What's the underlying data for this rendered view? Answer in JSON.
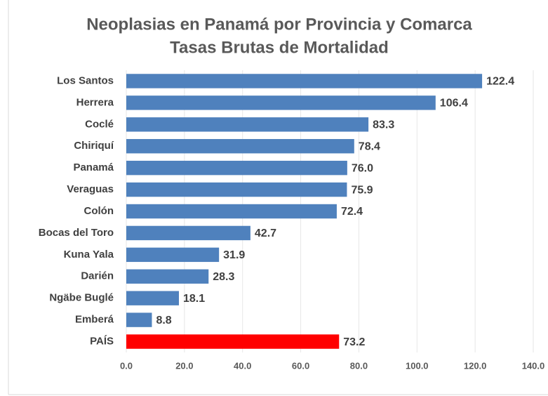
{
  "chart_data": {
    "type": "barh",
    "title": "Neoplasias en Panamá por Provincia y Comarca",
    "subtitle": "Tasas Brutas de Mortalidad",
    "categories": [
      "Los Santos",
      "Herrera",
      "Coclé",
      "Chiriquí",
      "Panamá",
      "Veraguas",
      "Colón",
      "Bocas  del Toro",
      "Kuna Yala",
      "Darién",
      "Ngäbe Buglé",
      "Emberá",
      "PAÍS"
    ],
    "values": [
      122.4,
      106.4,
      83.3,
      78.4,
      76,
      75.9,
      72.4,
      42.7,
      31.9,
      28.3,
      18.1,
      8.8,
      73.2
    ],
    "value_labels": [
      "122.4",
      "106.4",
      "83.3",
      "78.4",
      "76.0",
      "75.9",
      "72.4",
      "42.7",
      "31.9",
      "28.3",
      "18.1",
      "8.8",
      "73.2"
    ],
    "colors": [
      "#4f81bd",
      "#4f81bd",
      "#4f81bd",
      "#4f81bd",
      "#4f81bd",
      "#4f81bd",
      "#4f81bd",
      "#4f81bd",
      "#4f81bd",
      "#4f81bd",
      "#4f81bd",
      "#4f81bd",
      "#ff0000"
    ],
    "xlim": [
      0,
      140
    ],
    "xticks": [
      {
        "value": 0,
        "label": "0.0"
      },
      {
        "value": 20,
        "label": "20.0"
      },
      {
        "value": 40,
        "label": "40.0"
      },
      {
        "value": 60,
        "label": "60.0"
      },
      {
        "value": 80,
        "label": "80.0"
      },
      {
        "value": 100,
        "label": "100.0"
      },
      {
        "value": 120,
        "label": "120.0"
      },
      {
        "value": 140,
        "label": "140.0"
      }
    ],
    "grid": true
  }
}
